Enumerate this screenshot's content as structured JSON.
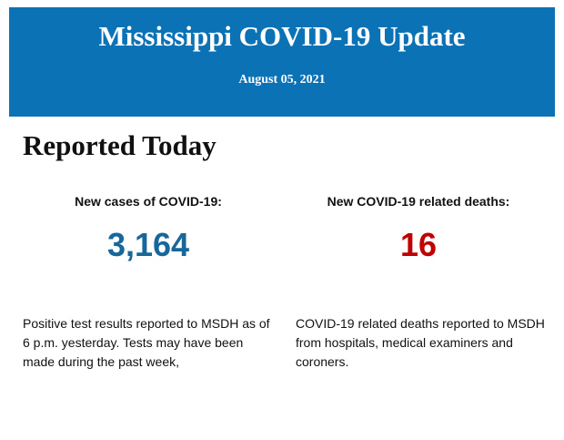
{
  "header": {
    "title": "Mississippi COVID-19 Update",
    "date": "August 05, 2021"
  },
  "section": {
    "title": "Reported Today"
  },
  "stats": [
    {
      "label": "New cases of COVID-19:",
      "value": "3,164",
      "description": "Positive test results reported to MSDH as of 6 p.m. yesterday. Tests may have been made during the past week,"
    },
    {
      "label": "New COVID-19 related deaths:",
      "value": "16",
      "description": "COVID-19 related deaths reported to MSDH from hospitals, medical examiners and coroners."
    }
  ]
}
